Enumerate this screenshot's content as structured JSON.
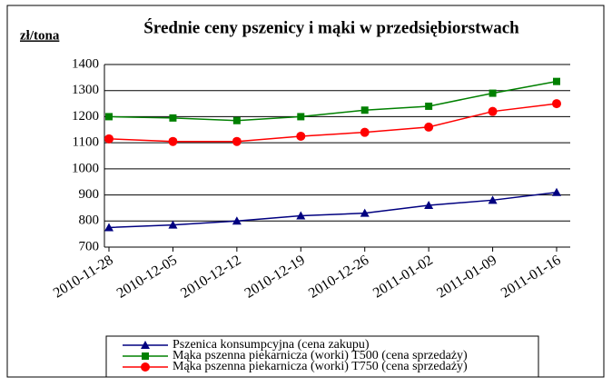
{
  "chart_data": {
    "type": "line",
    "title": "Średnie ceny pszenicy i mąki w przedsiębiorstwach",
    "y_label": "zł/tona",
    "categories": [
      "2010-11-28",
      "2010-12-05",
      "2010-12-12",
      "2010-12-19",
      "2010-12-26",
      "2011-01-02",
      "2011-01-09",
      "2011-01-16"
    ],
    "series": [
      {
        "name": "Pszenica konsumpcyjna (cena zakupu)",
        "color": "#000080",
        "marker": "triangle",
        "values": [
          775,
          785,
          800,
          820,
          830,
          860,
          880,
          910
        ]
      },
      {
        "name": "Mąka pszenna piekarnicza (worki) T500 (cena sprzedaży)",
        "color": "#008000",
        "marker": "square",
        "values": [
          1200,
          1195,
          1185,
          1200,
          1225,
          1240,
          1290,
          1335
        ]
      },
      {
        "name": "Mąka pszenna piekarnicza (worki) T750 (cena sprzedaży)",
        "color": "#ff0000",
        "marker": "circle",
        "values": [
          1115,
          1105,
          1105,
          1125,
          1140,
          1160,
          1220,
          1250
        ]
      }
    ],
    "ylim": [
      700,
      1400
    ],
    "yticks": [
      700,
      800,
      900,
      1000,
      1100,
      1200,
      1300,
      1400
    ],
    "grid": true
  }
}
